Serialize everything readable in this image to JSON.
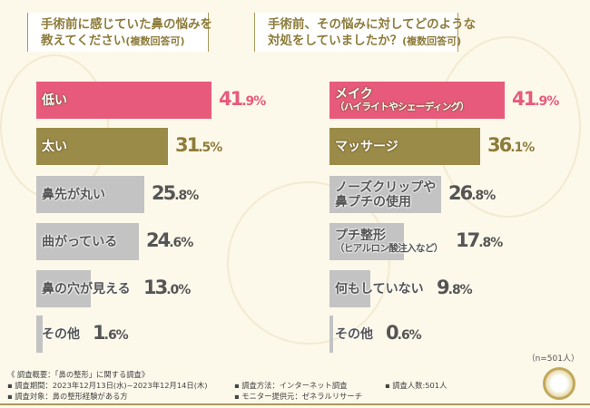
{
  "colors": {
    "highlight": "#e85a7c",
    "accent": "#9b8b48",
    "gray": "#c3c3c3",
    "highlight_text": "#e85a7c",
    "accent_text": "#8d7c3a",
    "gray_text": "#555555"
  },
  "left": {
    "title_line1": "手術前に感じていた鼻の悩みを",
    "title_line2": "教えてください",
    "title_note": "(複数回答可)",
    "items": [
      {
        "label": "低い",
        "sub": "",
        "value": 41.9,
        "int": "41",
        "dec": ".9%",
        "style": "highlight"
      },
      {
        "label": "太い",
        "sub": "",
        "value": 31.5,
        "int": "31",
        "dec": ".5%",
        "style": "accent"
      },
      {
        "label": "鼻先が丸い",
        "sub": "",
        "value": 25.8,
        "int": "25",
        "dec": ".8%",
        "style": "gray"
      },
      {
        "label": "曲がっている",
        "sub": "",
        "value": 24.6,
        "int": "24",
        "dec": ".6%",
        "style": "gray"
      },
      {
        "label": "鼻の穴が見える",
        "sub": "",
        "value": 13.0,
        "int": "13",
        "dec": ".0%",
        "style": "gray"
      },
      {
        "label": "その他",
        "sub": "",
        "value": 1.6,
        "int": "1",
        "dec": ".6%",
        "style": "gray"
      }
    ]
  },
  "right": {
    "title_line1": "手術前、その悩みに対してどのような",
    "title_line2": "対処をしていましたか？",
    "title_note": "(複数回答可)",
    "items": [
      {
        "label": "メイク",
        "sub": "（ハイライトやシェーディング）",
        "value": 41.9,
        "int": "41",
        "dec": ".9%",
        "style": "highlight"
      },
      {
        "label": "マッサージ",
        "sub": "",
        "value": 36.1,
        "int": "36",
        "dec": ".1%",
        "style": "accent"
      },
      {
        "label": "ノーズクリップや",
        "sub": "鼻プチの使用",
        "value": 26.8,
        "int": "26",
        "dec": ".8%",
        "style": "gray",
        "subbig": true
      },
      {
        "label": "プチ整形",
        "sub": "（ヒアルロン酸注入など）",
        "value": 17.8,
        "int": "17",
        "dec": ".8%",
        "style": "gray"
      },
      {
        "label": "何もしていない",
        "sub": "",
        "value": 9.8,
        "int": "9",
        "dec": ".8%",
        "style": "gray"
      },
      {
        "label": "その他",
        "sub": "",
        "value": 0.6,
        "int": "0",
        "dec": ".6%",
        "style": "gray"
      }
    ]
  },
  "sample": "（n=501人）",
  "footer": {
    "overview": "《 調査概要：「鼻の整形」に関する調査》",
    "period": "▪ 調査期間：2023年12月13日(水)~2023年12月14日(木)",
    "target": "▪ 調査対象：鼻の整形経験がある方",
    "method": "▪ 調査方法：インターネット調査",
    "provider": "▪ モニター提供元：ゼネラルリサーチ",
    "count": "▪ 調査人数:501人"
  }
}
